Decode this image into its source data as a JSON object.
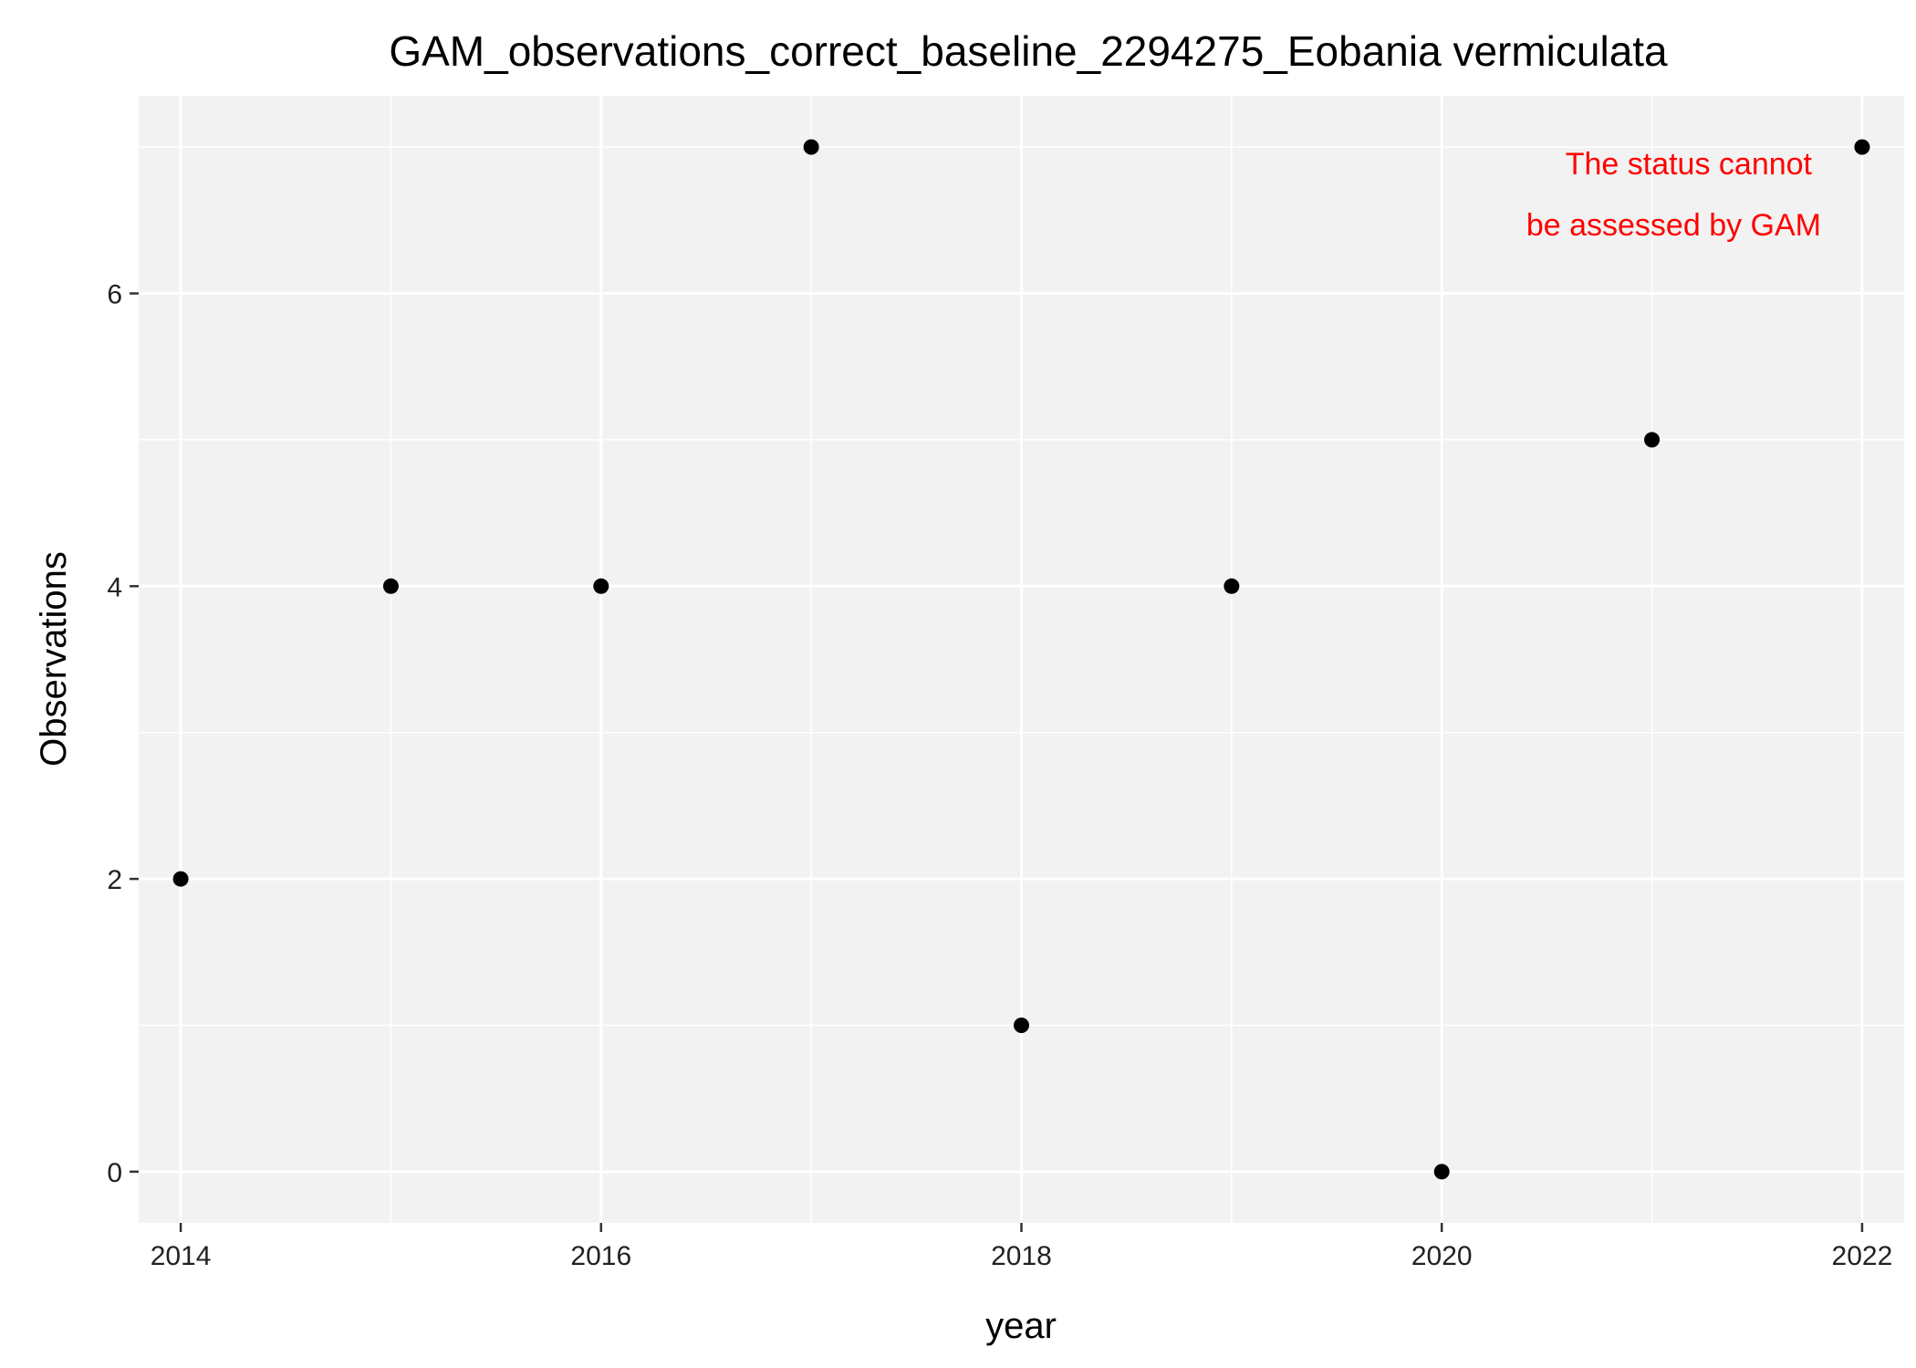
{
  "chart_data": {
    "type": "scatter",
    "title": "GAM_observations_correct_baseline_2294275_Eobania vermiculata",
    "xlabel": "year",
    "ylabel": "Observations",
    "x": [
      2014,
      2015,
      2016,
      2017,
      2018,
      2019,
      2020,
      2021,
      2022
    ],
    "y": [
      2,
      4,
      4,
      7,
      1,
      4,
      0,
      5,
      7
    ],
    "xlim": [
      2013.8,
      2022.2
    ],
    "ylim": [
      -0.35,
      7.35
    ],
    "x_ticks": [
      2014,
      2016,
      2018,
      2020,
      2022
    ],
    "y_ticks": [
      0,
      2,
      4,
      6
    ],
    "grid": true,
    "legend": "none",
    "annotation": {
      "lines": [
        "The status cannot",
        "be assessed by GAM"
      ],
      "color": "#ff0000",
      "position": "top-right"
    },
    "colors": {
      "panel": "#f2f2f2",
      "grid": "#ffffff",
      "points": "#000000"
    }
  }
}
